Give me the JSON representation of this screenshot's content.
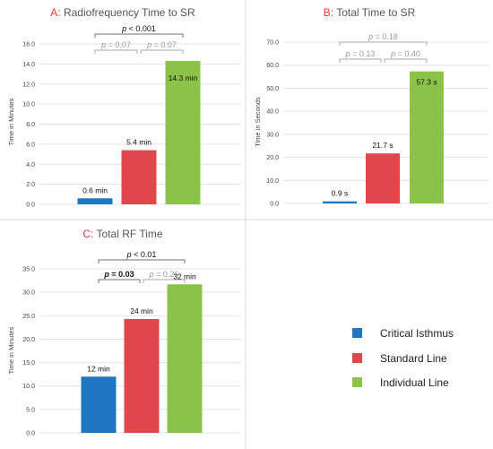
{
  "colors": {
    "critical_isthmus": "#1f77c4",
    "standard_line": "#e0474c",
    "individual_line": "#8bc34a",
    "title_letter": "#e53935",
    "bracket_dark": "#707070",
    "bracket_light": "#a8a8a8"
  },
  "legend": {
    "items": [
      {
        "label": "Critical Isthmus",
        "color": "#1f77c4"
      },
      {
        "label": "Standard Line",
        "color": "#e0474c"
      },
      {
        "label": "Individual Line",
        "color": "#8bc34a"
      }
    ]
  },
  "chart_data": [
    {
      "type": "bar",
      "panel_letter": "A:",
      "title": "Radiofrequency Time to SR",
      "ylabel": "Time in Minutes",
      "ylim": [
        0,
        16
      ],
      "ticks": [
        "0.0",
        "2.0",
        "4.0",
        "6.0",
        "8.0",
        "10.0",
        "12.0",
        "14.0",
        "16.0"
      ],
      "grid": true,
      "categories": [
        "Critical Isthmus",
        "Standard Line",
        "Individual Line"
      ],
      "values": [
        0.6,
        5.4,
        14.3
      ],
      "value_labels": [
        "0.6 min",
        "5.4 min",
        "14.3 min"
      ],
      "comparisons": [
        {
          "label": "p < 0.001",
          "from": 0,
          "to": 2,
          "style": "dark"
        },
        {
          "label": "p = 0.07",
          "from": 0,
          "to": 1,
          "style": "light"
        },
        {
          "label": "p = 0.07",
          "from": 1,
          "to": 2,
          "style": "light"
        }
      ]
    },
    {
      "type": "bar",
      "panel_letter": "B:",
      "title": "Total Time to SR",
      "ylabel": "Time in Seconds",
      "ylim": [
        0,
        70
      ],
      "ticks": [
        "0.0",
        "10.0",
        "20.0",
        "30.0",
        "40.0",
        "50.0",
        "60.0",
        "70.0"
      ],
      "grid": true,
      "categories": [
        "Critical Isthmus",
        "Standard Line",
        "Individual Line"
      ],
      "values": [
        0.9,
        21.7,
        57.3
      ],
      "value_labels": [
        "0.9 s",
        "21.7 s",
        "57.3 s"
      ],
      "comparisons": [
        {
          "label": "p = 0.18",
          "from": 0,
          "to": 2,
          "style": "light"
        },
        {
          "label": "p = 0.13",
          "from": 0,
          "to": 1,
          "style": "light"
        },
        {
          "label": "p = 0.40",
          "from": 1,
          "to": 2,
          "style": "light"
        }
      ]
    },
    {
      "type": "bar",
      "panel_letter": "C:",
      "title": "Total RF Time",
      "ylabel": "Time in Minutes",
      "ylim": [
        0,
        35
      ],
      "ticks": [
        "0.0",
        "5.0",
        "10.0",
        "15.0",
        "20.0",
        "25.0",
        "30.0",
        "35.0"
      ],
      "grid": true,
      "categories": [
        "Critical Isthmus",
        "Standard Line",
        "Individual Line"
      ],
      "values": [
        12,
        24.3,
        31.7
      ],
      "value_labels": [
        "12 min",
        "24 min",
        "32 min"
      ],
      "comparisons": [
        {
          "label": "p < 0.01",
          "from": 0,
          "to": 2,
          "style": "dark"
        },
        {
          "label": "p = 0.03",
          "from": 0,
          "to": 1,
          "style": "dark"
        },
        {
          "label": "p = 0.26",
          "from": 1,
          "to": 2,
          "style": "light"
        }
      ]
    }
  ]
}
